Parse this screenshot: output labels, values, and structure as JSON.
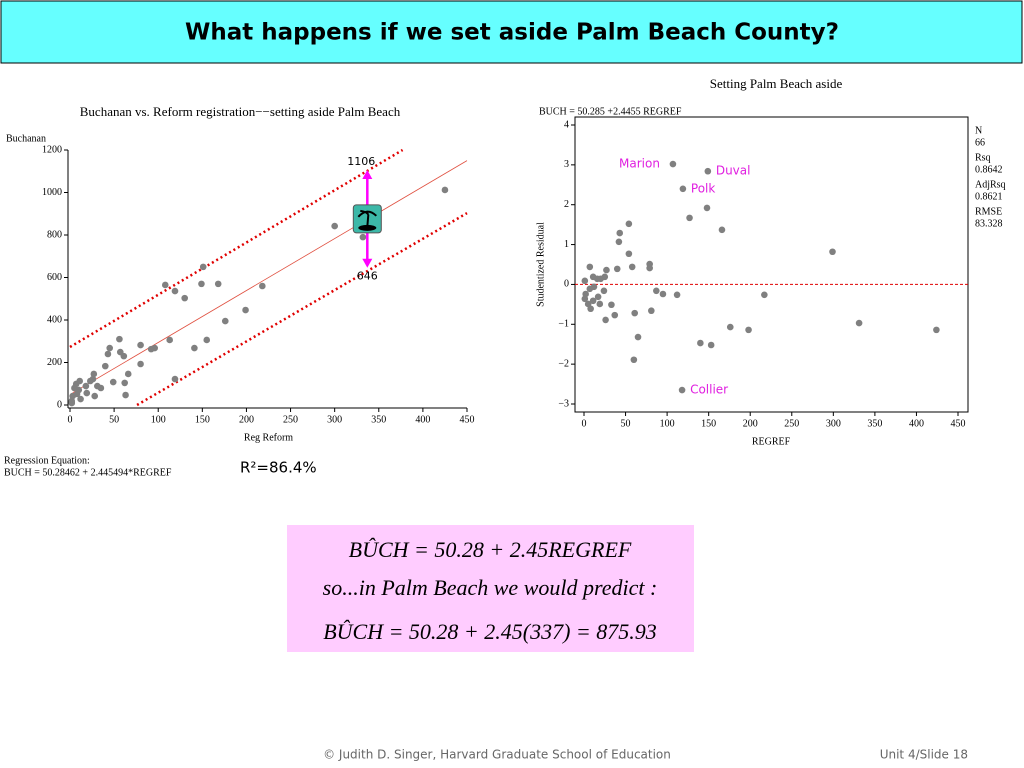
{
  "slide_title": "What happens if we set aside Palm Beach County?",
  "chart_data": [
    {
      "type": "scatter",
      "title": "Buchanan vs. Reform registration−−setting aside Palm Beach",
      "ylabel": "Buchanan",
      "xlabel": "Reg Reform",
      "color": "#808080",
      "x": [
        425,
        300,
        332,
        108,
        119,
        130,
        151,
        149,
        168,
        218,
        199,
        176,
        155,
        141,
        113,
        119,
        96,
        92,
        80,
        80,
        56,
        57,
        61,
        45,
        43,
        40,
        66,
        62,
        63,
        49,
        35,
        31,
        27,
        26,
        23,
        28,
        18,
        11,
        7,
        8,
        3,
        2,
        5,
        10,
        12,
        19,
        2
      ],
      "y": [
        1012,
        842,
        790,
        565,
        536,
        503,
        650,
        570,
        570,
        560,
        447,
        395,
        306,
        268,
        306,
        122,
        268,
        263,
        282,
        193,
        310,
        249,
        230,
        268,
        240,
        183,
        146,
        104,
        47,
        108,
        80,
        89,
        146,
        122,
        113,
        42,
        89,
        113,
        99,
        52,
        42,
        19,
        80,
        71,
        28,
        56,
        9
      ],
      "xlim": [
        0,
        450
      ],
      "ylim": [
        0,
        1200
      ],
      "xticks": [
        0,
        50,
        100,
        150,
        200,
        250,
        300,
        350,
        400,
        450
      ],
      "yticks": [
        0,
        200,
        400,
        600,
        800,
        1000,
        1200
      ],
      "fit_line": {
        "color": "#e05040",
        "x": [
          3,
          450
        ],
        "y": [
          57,
          1150
        ]
      },
      "bands": [
        {
          "color": "#e00000",
          "x": [
            0,
            377
          ],
          "y": [
            273,
            1200
          ]
        },
        {
          "color": "#e00000",
          "x": [
            76,
            450
          ],
          "y": [
            0,
            903
          ]
        }
      ],
      "arrow": {
        "color": "#ff00ff",
        "x": 337,
        "from": 1106,
        "to": 646
      },
      "equation_heading": "Regression Equation:",
      "equation": "BUCH =  50.28462 + 2.445494*REGREF",
      "r_squared": "R²=86.4%"
    },
    {
      "type": "scatter",
      "title": "Setting Palm Beach aside",
      "subtitle": "BUCH = 50.285 +2.4455 REGREF",
      "ylabel": "Studentized Residual",
      "xlabel": "REGREF",
      "color": "#808080",
      "x": [
        107,
        149,
        119,
        118,
        127,
        148,
        166,
        54,
        43,
        54,
        42,
        79,
        79,
        58,
        40,
        7,
        87,
        95,
        112,
        37,
        61,
        81,
        65,
        60,
        140,
        153,
        176,
        198,
        217,
        299,
        331,
        424,
        26,
        33,
        24,
        20,
        25,
        27,
        16,
        11,
        1,
        2,
        5,
        1,
        8,
        11,
        17,
        12,
        7,
        19
      ],
      "y": [
        3.02,
        2.84,
        2.4,
        -2.65,
        1.67,
        1.92,
        1.37,
        1.52,
        1.29,
        0.77,
        1.07,
        0.51,
        0.41,
        0.44,
        0.39,
        0.44,
        -0.16,
        -0.24,
        -0.26,
        -0.77,
        -0.72,
        -0.66,
        -1.32,
        -1.89,
        -1.47,
        -1.52,
        -1.07,
        -1.14,
        -0.26,
        0.82,
        -0.97,
        -1.14,
        -0.89,
        -0.51,
        -0.16,
        0.14,
        0.19,
        0.36,
        0.14,
        0.19,
        0.09,
        -0.24,
        -0.49,
        -0.36,
        -0.61,
        -0.41,
        -0.31,
        -0.06,
        -0.11,
        -0.49
      ],
      "xlim": [
        0,
        450
      ],
      "ylim": [
        -3,
        4
      ],
      "xticks": [
        0,
        50,
        100,
        150,
        200,
        250,
        300,
        350,
        400,
        450
      ],
      "yticks": [
        {
          "value": -3,
          "label": "−3"
        },
        {
          "value": -2,
          "label": "−2"
        },
        {
          "value": -1,
          "label": "−1"
        },
        0,
        1,
        2,
        3,
        4
      ],
      "reference_line": {
        "color": "#e00000",
        "y": 0
      },
      "point_labels": [
        {
          "text": "Marion",
          "x": 107,
          "y": 3.02
        },
        {
          "text": "Duval",
          "x": 149,
          "y": 2.84
        },
        {
          "text": "Polk",
          "x": 119,
          "y": 2.4
        },
        {
          "text": "Collier",
          "x": 118,
          "y": -2.65
        }
      ],
      "point_label_color": "#e020e0",
      "stats": [
        {
          "label": "N",
          "value": 66
        },
        {
          "label": "Rsq",
          "value": 0.8642
        },
        {
          "label": "AdjRsq",
          "value": 0.8621
        },
        {
          "label": "RMSE",
          "value": 83.328
        }
      ]
    }
  ],
  "formula": [
    "BÛCH = 50.28 + 2.45REGREF",
    "so...in Palm Beach we would  predict :",
    "BÛCH = 50.28 + 2.45(337) = 875.93"
  ],
  "footer": {
    "credit": "© Judith D. Singer, Harvard Graduate School of Education",
    "slide": "Unit 4/Slide 18"
  }
}
